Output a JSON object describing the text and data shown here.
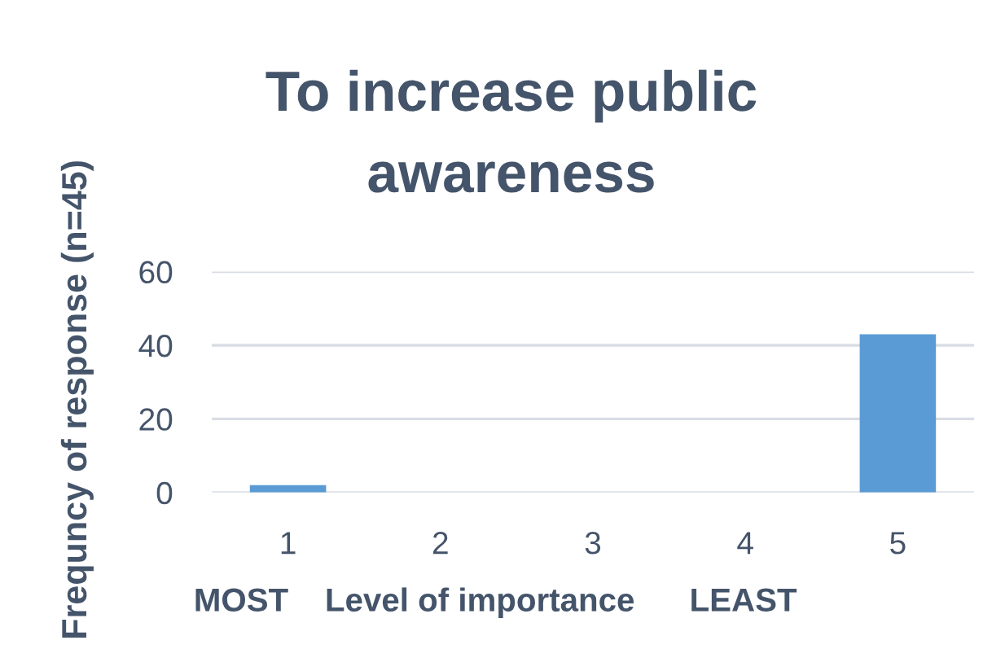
{
  "chart_data": {
    "type": "bar",
    "title": "To increase public\nawareness",
    "xlabel": "MOST    Level of importance      LEAST",
    "ylabel": "Frequncy of response (n=45)",
    "categories": [
      "1",
      "2",
      "3",
      "4",
      "5"
    ],
    "values": [
      2,
      0,
      0,
      0,
      43
    ],
    "color": "#5b9bd5",
    "ylim": [
      0,
      60
    ],
    "yticks": [
      0,
      20,
      40,
      60
    ],
    "grid": "y"
  }
}
